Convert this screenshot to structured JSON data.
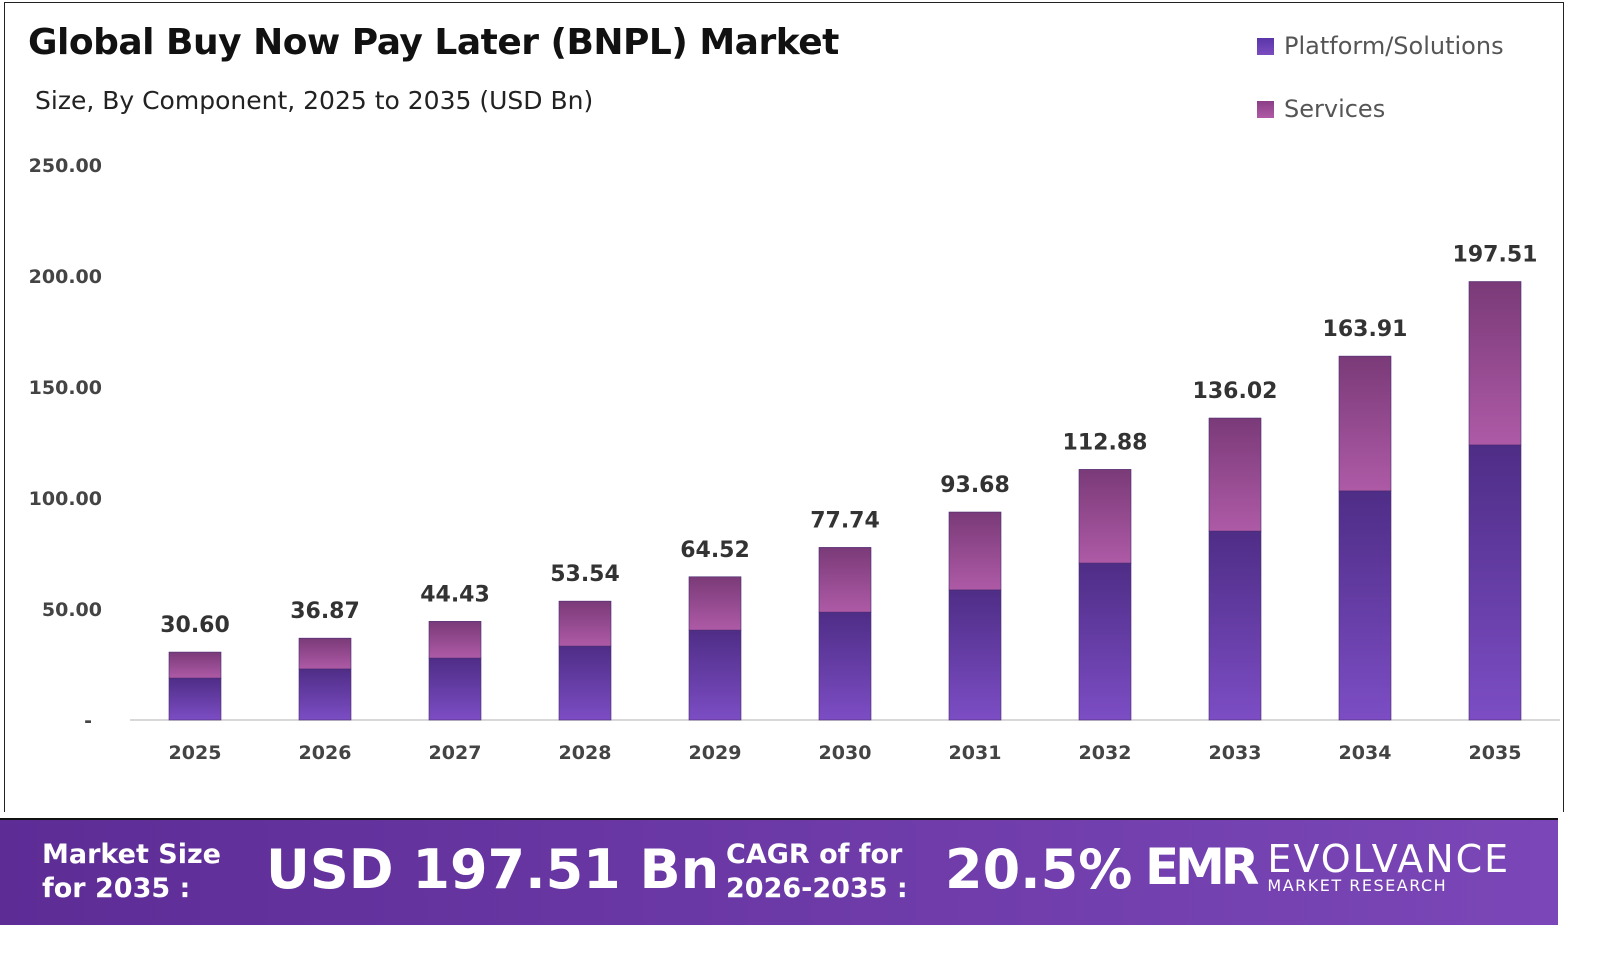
{
  "chart_data": {
    "type": "bar",
    "stacked": true,
    "title": "Global Buy Now Pay Later (BNPL) Market",
    "subtitle": "Size, By Component, 2025 to 2035 (USD Bn)",
    "categories": [
      "2025",
      "2026",
      "2027",
      "2028",
      "2029",
      "2030",
      "2031",
      "2032",
      "2033",
      "2034",
      "2035"
    ],
    "series": [
      {
        "name": "Platform/Solutions",
        "color": "#6a3fb0",
        "values": [
          18.9,
          23.0,
          27.9,
          33.3,
          40.5,
          48.6,
          58.6,
          70.7,
          85.1,
          103.2,
          123.9
        ]
      },
      {
        "name": "Services",
        "color": "#9a4a8e",
        "values": [
          11.7,
          13.87,
          16.53,
          20.24,
          24.02,
          29.14,
          35.08,
          42.18,
          50.92,
          60.71,
          73.61
        ]
      }
    ],
    "totals": [
      "30.60",
      "36.87",
      "44.43",
      "53.54",
      "64.52",
      "77.74",
      "93.68",
      "112.88",
      "136.02",
      "163.91",
      "197.51"
    ],
    "yticks": [
      "-",
      "50.00",
      "100.00",
      "150.00",
      "200.00",
      "250.00"
    ],
    "ylim": [
      0,
      250
    ],
    "legend_position": "top-right",
    "grid": false
  },
  "footer": {
    "market_label_1": "Market Size",
    "market_label_2": "for 2035 :",
    "market_value": "USD 197.51 Bn",
    "cagr_label_1": "CAGR of for",
    "cagr_label_2": "2026-2035 :",
    "cagr_value": "20.5%",
    "logo_mark": "EMR",
    "logo_name": "EVOLVANCE",
    "logo_tagline": "MARKET RESEARCH"
  }
}
